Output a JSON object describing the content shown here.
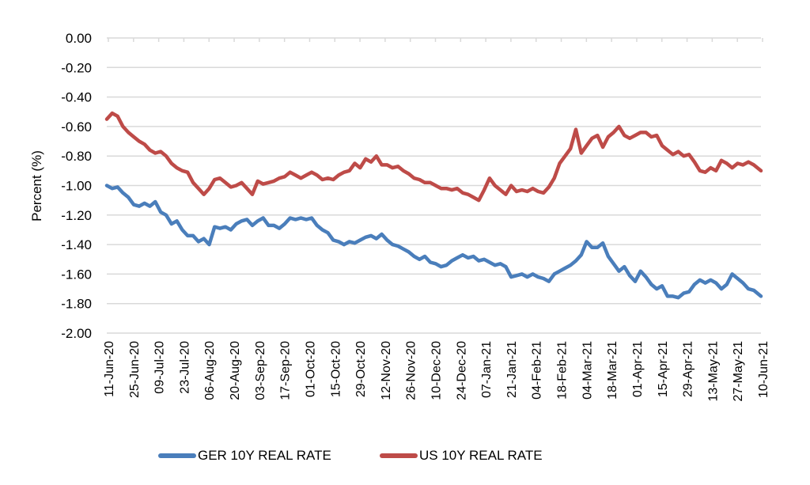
{
  "chart_data": {
    "type": "line",
    "title": "",
    "xlabel": "",
    "ylabel": "Percent (%)",
    "ylim": [
      -2.0,
      0.0
    ],
    "y_ticks": [
      "0.00",
      "-0.20",
      "-0.40",
      "-0.60",
      "-0.80",
      "-1.00",
      "-1.20",
      "-1.40",
      "-1.60",
      "-1.80",
      "-2.00"
    ],
    "y_tick_values": [
      0,
      -0.2,
      -0.4,
      -0.6,
      -0.8,
      -1.0,
      -1.2,
      -1.4,
      -1.6,
      -1.8,
      -2.0
    ],
    "x_tick_labels": [
      "11-Jun-20",
      "25-Jun-20",
      "09-Jul-20",
      "23-Jul-20",
      "06-Aug-20",
      "20-Aug-20",
      "03-Sep-20",
      "17-Sep-20",
      "01-Oct-20",
      "15-Oct-20",
      "29-Oct-20",
      "12-Nov-20",
      "26-Nov-20",
      "10-Dec-20",
      "24-Dec-20",
      "07-Jan-21",
      "21-Jan-21",
      "04-Feb-21",
      "18-Feb-21",
      "04-Mar-21",
      "18-Mar-21",
      "01-Apr-21",
      "15-Apr-21",
      "29-Apr-21",
      "13-May-21",
      "27-May-21",
      "10-Jun-21"
    ],
    "x_range_days": [
      0,
      364
    ],
    "grid": "horizontal",
    "legend_position": "bottom",
    "series": [
      {
        "name": "GER 10Y REAL RATE",
        "color": "#4a7ebb",
        "x_days": [
          0,
          3,
          6,
          9,
          12,
          15,
          18,
          21,
          24,
          27,
          30,
          33,
          36,
          39,
          42,
          45,
          48,
          51,
          54,
          57,
          60,
          63,
          66,
          69,
          72,
          75,
          78,
          81,
          84,
          87,
          90,
          93,
          96,
          99,
          102,
          105,
          108,
          111,
          114,
          117,
          120,
          123,
          126,
          129,
          132,
          135,
          138,
          141,
          144,
          147,
          150,
          153,
          156,
          159,
          162,
          165,
          168,
          171,
          174,
          177,
          180,
          183,
          186,
          189,
          192,
          195,
          198,
          201,
          204,
          207,
          210,
          213,
          216,
          219,
          222,
          225,
          228,
          231,
          234,
          237,
          240,
          243,
          246,
          249,
          252,
          255,
          258,
          261,
          264,
          267,
          270,
          273,
          276,
          279,
          282,
          285,
          288,
          291,
          294,
          297,
          300,
          303,
          306,
          309,
          312,
          315,
          318,
          321,
          324,
          327,
          330,
          333,
          336,
          339,
          342,
          345,
          348,
          351,
          354,
          357,
          360,
          364
        ],
        "values": [
          -1.0,
          -1.02,
          -1.01,
          -1.05,
          -1.08,
          -1.13,
          -1.14,
          -1.12,
          -1.14,
          -1.11,
          -1.18,
          -1.2,
          -1.26,
          -1.24,
          -1.3,
          -1.34,
          -1.34,
          -1.38,
          -1.36,
          -1.4,
          -1.28,
          -1.29,
          -1.28,
          -1.3,
          -1.26,
          -1.24,
          -1.23,
          -1.27,
          -1.24,
          -1.22,
          -1.27,
          -1.27,
          -1.29,
          -1.26,
          -1.22,
          -1.23,
          -1.22,
          -1.23,
          -1.22,
          -1.27,
          -1.3,
          -1.32,
          -1.37,
          -1.38,
          -1.4,
          -1.38,
          -1.39,
          -1.37,
          -1.35,
          -1.34,
          -1.36,
          -1.33,
          -1.37,
          -1.4,
          -1.41,
          -1.43,
          -1.45,
          -1.48,
          -1.5,
          -1.48,
          -1.52,
          -1.53,
          -1.55,
          -1.54,
          -1.51,
          -1.49,
          -1.47,
          -1.49,
          -1.48,
          -1.51,
          -1.5,
          -1.52,
          -1.54,
          -1.53,
          -1.55,
          -1.62,
          -1.61,
          -1.6,
          -1.62,
          -1.6,
          -1.62,
          -1.63,
          -1.65,
          -1.6,
          -1.58,
          -1.56,
          -1.54,
          -1.51,
          -1.47,
          -1.38,
          -1.42,
          -1.42,
          -1.39,
          -1.48,
          -1.53,
          -1.58,
          -1.55,
          -1.61,
          -1.65,
          -1.58,
          -1.62,
          -1.67,
          -1.7,
          -1.68,
          -1.75,
          -1.75,
          -1.76,
          -1.73,
          -1.72,
          -1.67,
          -1.64,
          -1.66,
          -1.64,
          -1.66,
          -1.7,
          -1.67,
          -1.6,
          -1.63,
          -1.66,
          -1.7,
          -1.71,
          -1.75
        ]
      },
      {
        "name": "US 10Y REAL RATE",
        "color": "#be4b48",
        "x_days": [
          0,
          3,
          6,
          9,
          12,
          15,
          18,
          21,
          24,
          27,
          30,
          33,
          36,
          39,
          42,
          45,
          48,
          51,
          54,
          57,
          60,
          63,
          66,
          69,
          72,
          75,
          78,
          81,
          84,
          87,
          90,
          93,
          96,
          99,
          102,
          105,
          108,
          111,
          114,
          117,
          120,
          123,
          126,
          129,
          132,
          135,
          138,
          141,
          144,
          147,
          150,
          153,
          156,
          159,
          162,
          165,
          168,
          171,
          174,
          177,
          180,
          183,
          186,
          189,
          192,
          195,
          198,
          201,
          204,
          207,
          210,
          213,
          216,
          219,
          222,
          225,
          228,
          231,
          234,
          237,
          240,
          243,
          246,
          249,
          252,
          255,
          258,
          261,
          264,
          267,
          270,
          273,
          276,
          279,
          282,
          285,
          288,
          291,
          294,
          297,
          300,
          303,
          306,
          309,
          312,
          315,
          318,
          321,
          324,
          327,
          330,
          333,
          336,
          339,
          342,
          345,
          348,
          351,
          354,
          357,
          360,
          364
        ],
        "values": [
          -0.55,
          -0.51,
          -0.53,
          -0.6,
          -0.64,
          -0.67,
          -0.7,
          -0.72,
          -0.76,
          -0.78,
          -0.77,
          -0.8,
          -0.85,
          -0.88,
          -0.9,
          -0.91,
          -0.98,
          -1.02,
          -1.06,
          -1.02,
          -0.96,
          -0.95,
          -0.98,
          -1.01,
          -1.0,
          -0.98,
          -1.02,
          -1.06,
          -0.97,
          -0.99,
          -0.98,
          -0.97,
          -0.95,
          -0.94,
          -0.91,
          -0.93,
          -0.95,
          -0.93,
          -0.91,
          -0.93,
          -0.96,
          -0.95,
          -0.96,
          -0.93,
          -0.91,
          -0.9,
          -0.85,
          -0.88,
          -0.82,
          -0.84,
          -0.8,
          -0.86,
          -0.86,
          -0.88,
          -0.87,
          -0.9,
          -0.92,
          -0.95,
          -0.96,
          -0.98,
          -0.98,
          -1.0,
          -1.02,
          -1.02,
          -1.03,
          -1.02,
          -1.05,
          -1.06,
          -1.08,
          -1.1,
          -1.03,
          -0.95,
          -1.0,
          -1.03,
          -1.06,
          -1.0,
          -1.04,
          -1.03,
          -1.04,
          -1.02,
          -1.04,
          -1.05,
          -1.01,
          -0.95,
          -0.85,
          -0.8,
          -0.75,
          -0.62,
          -0.78,
          -0.73,
          -0.68,
          -0.66,
          -0.74,
          -0.67,
          -0.64,
          -0.6,
          -0.66,
          -0.68,
          -0.66,
          -0.64,
          -0.64,
          -0.67,
          -0.66,
          -0.73,
          -0.76,
          -0.79,
          -0.77,
          -0.8,
          -0.79,
          -0.84,
          -0.9,
          -0.91,
          -0.88,
          -0.9,
          -0.83,
          -0.85,
          -0.88,
          -0.85,
          -0.86,
          -0.84,
          -0.86,
          -0.9
        ]
      }
    ]
  },
  "legend": {
    "items": [
      {
        "label": "GER 10Y REAL RATE",
        "color": "#4a7ebb"
      },
      {
        "label": "US 10Y REAL RATE",
        "color": "#be4b48"
      }
    ]
  }
}
